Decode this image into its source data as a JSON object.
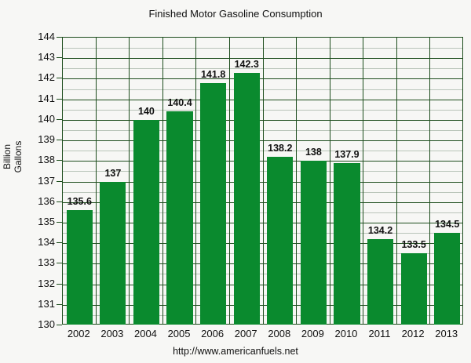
{
  "chart_data": {
    "type": "bar",
    "title": "Finished Motor Gasoline Consumption",
    "xlabel": "",
    "ylabel": "Billion Gallons",
    "ylim": [
      130,
      144
    ],
    "yticks": [
      130,
      131,
      132,
      133,
      134,
      135,
      136,
      137,
      138,
      139,
      140,
      141,
      142,
      143,
      144
    ],
    "grid": true,
    "categories": [
      "2002",
      "2003",
      "2004",
      "2005",
      "2006",
      "2007",
      "2008",
      "2009",
      "2010",
      "2011",
      "2012",
      "2013"
    ],
    "values": [
      135.6,
      137,
      140,
      140.4,
      141.8,
      142.3,
      138.2,
      138,
      137.9,
      134.2,
      133.5,
      134.5
    ],
    "value_labels": [
      "135.6",
      "137",
      "140",
      "140.4",
      "141.8",
      "142.3",
      "138.2",
      "138",
      "137.9",
      "134.2",
      "133.5",
      "134.5"
    ],
    "bar_color": "#0a8a2e",
    "source": "http://www.americanfuels.net"
  },
  "labels": {
    "title": "Finished Motor Gasoline Consumption",
    "ylabel_line1": "Billion",
    "ylabel_line2": "Gallons",
    "source": "http://www.americanfuels.net"
  }
}
